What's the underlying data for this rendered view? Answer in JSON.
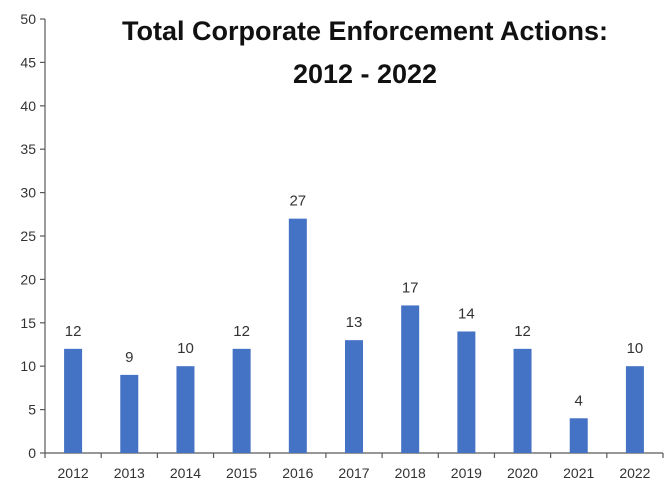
{
  "chart_data": {
    "type": "bar",
    "title_lines": [
      "Total Corporate Enforcement Actions:",
      "2012 - 2022"
    ],
    "categories": [
      "2012",
      "2013",
      "2014",
      "2015",
      "2016",
      "2017",
      "2018",
      "2019",
      "2020",
      "2021",
      "2022"
    ],
    "values": [
      12,
      9,
      10,
      12,
      27,
      13,
      17,
      14,
      12,
      4,
      10
    ],
    "data_labels": [
      "12",
      "9",
      "10",
      "12",
      "27",
      "13",
      "17",
      "14",
      "12",
      "4",
      "10"
    ],
    "xlabel": "",
    "ylabel": "",
    "ylim": [
      0,
      50
    ],
    "yticks": [
      0,
      5,
      10,
      15,
      20,
      25,
      30,
      35,
      40,
      45,
      50
    ],
    "ytick_labels": [
      "0",
      "5",
      "10",
      "15",
      "20",
      "25",
      "30",
      "35",
      "40",
      "45",
      "50"
    ],
    "grid": false,
    "legend": "none",
    "bar_color": "#4472C4",
    "axis_color": "#595959",
    "text_color": "#333333"
  }
}
